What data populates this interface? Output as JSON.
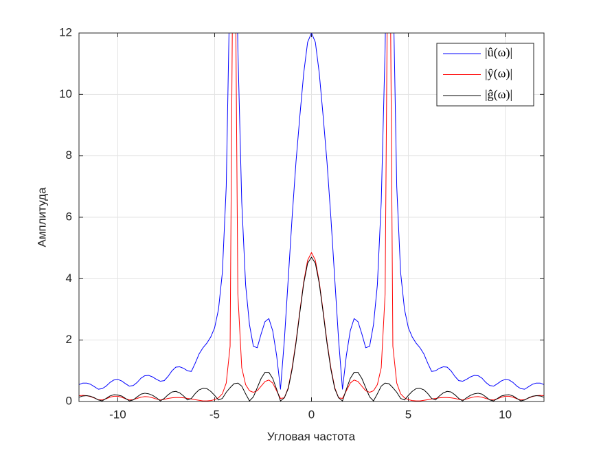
{
  "chart_data": {
    "type": "line",
    "xlabel": "Угловая частота",
    "ylabel": "Амплитуда",
    "xlim": [
      -12,
      12
    ],
    "ylim": [
      0,
      12
    ],
    "xticks": [
      -10,
      -5,
      0,
      5,
      10
    ],
    "yticks": [
      0,
      2,
      4,
      6,
      8,
      10,
      12
    ],
    "grid": true,
    "legend_position": "northeast",
    "x": [
      -12,
      -11.8,
      -11.6,
      -11.4,
      -11.2,
      -11,
      -10.8,
      -10.6,
      -10.4,
      -10.2,
      -10,
      -9.8,
      -9.6,
      -9.4,
      -9.2,
      -9,
      -8.8,
      -8.6,
      -8.4,
      -8.2,
      -8,
      -7.8,
      -7.6,
      -7.4,
      -7.2,
      -7,
      -6.8,
      -6.6,
      -6.4,
      -6.2,
      -6,
      -5.8,
      -5.6,
      -5.4,
      -5.2,
      -5,
      -4.8,
      -4.6,
      -4.4,
      -4.2,
      -4,
      -3.8,
      -3.6,
      -3.4,
      -3.2,
      -3,
      -2.8,
      -2.6,
      -2.4,
      -2.2,
      -2,
      -1.8,
      -1.6,
      -1.4,
      -1.2,
      -1,
      -0.8,
      -0.6,
      -0.4,
      -0.2,
      0,
      0.2,
      0.4,
      0.6,
      0.8,
      1,
      1.2,
      1.4,
      1.6,
      1.8,
      2,
      2.2,
      2.4,
      2.6,
      2.8,
      3,
      3.2,
      3.4,
      3.6,
      3.8,
      4,
      4.2,
      4.4,
      4.6,
      4.8,
      5,
      5.2,
      5.4,
      5.6,
      5.8,
      6,
      6.2,
      6.4,
      6.6,
      6.8,
      7,
      7.2,
      7.4,
      7.6,
      7.8,
      8,
      8.2,
      8.4,
      8.6,
      8.8,
      9,
      9.2,
      9.4,
      9.6,
      9.8,
      10,
      10.2,
      10.4,
      10.6,
      10.8,
      11,
      11.2,
      11.4,
      11.6,
      11.8,
      12
    ],
    "series": [
      {
        "name": "|û(ω)|",
        "color": "#0000ff",
        "values": [
          0.55,
          0.6,
          0.6,
          0.56,
          0.48,
          0.4,
          0.42,
          0.5,
          0.62,
          0.7,
          0.72,
          0.67,
          0.58,
          0.5,
          0.52,
          0.62,
          0.76,
          0.84,
          0.85,
          0.8,
          0.72,
          0.66,
          0.68,
          0.82,
          1.0,
          1.12,
          1.13,
          1.08,
          1.0,
          0.98,
          1.25,
          1.55,
          1.75,
          1.9,
          2.1,
          2.4,
          3.0,
          4.2,
          7.0,
          14,
          20,
          11.5,
          6.5,
          3.8,
          2.5,
          1.8,
          1.75,
          2.2,
          2.6,
          2.7,
          2.3,
          1.5,
          0.4,
          2.0,
          4.0,
          6.0,
          7.8,
          9.3,
          10.7,
          11.7,
          12,
          11.7,
          10.7,
          9.3,
          7.8,
          6.0,
          4.0,
          2.0,
          0.4,
          1.5,
          2.3,
          2.7,
          2.6,
          2.2,
          1.75,
          1.8,
          2.5,
          3.8,
          6.5,
          11.5,
          20,
          14,
          7.0,
          4.2,
          3.0,
          2.4,
          2.1,
          1.9,
          1.75,
          1.55,
          1.25,
          0.98,
          1.0,
          1.08,
          1.13,
          1.12,
          1.0,
          0.82,
          0.68,
          0.66,
          0.72,
          0.8,
          0.85,
          0.84,
          0.76,
          0.62,
          0.52,
          0.5,
          0.58,
          0.67,
          0.72,
          0.7,
          0.62,
          0.5,
          0.42,
          0.4,
          0.48,
          0.56,
          0.6,
          0.6,
          0.55
        ]
      },
      {
        "name": "|ŷ(ω)|",
        "color": "#ff0000",
        "values": [
          0.19,
          0.2,
          0.19,
          0.16,
          0.11,
          0.06,
          0.05,
          0.09,
          0.14,
          0.17,
          0.17,
          0.14,
          0.09,
          0.05,
          0.06,
          0.1,
          0.14,
          0.16,
          0.15,
          0.12,
          0.08,
          0.05,
          0.07,
          0.1,
          0.12,
          0.13,
          0.13,
          0.12,
          0.1,
          0.08,
          0.06,
          0.04,
          0.02,
          0.02,
          0.03,
          0.06,
          0.12,
          0.25,
          0.6,
          1.8,
          20,
          3.5,
          1.1,
          0.55,
          0.35,
          0.3,
          0.35,
          0.5,
          0.65,
          0.7,
          0.6,
          0.35,
          0.1,
          0.12,
          0.45,
          1.1,
          1.95,
          2.95,
          3.9,
          4.6,
          4.85,
          4.6,
          3.9,
          2.95,
          1.95,
          1.1,
          0.45,
          0.12,
          0.1,
          0.35,
          0.6,
          0.7,
          0.65,
          0.5,
          0.35,
          0.3,
          0.35,
          0.55,
          1.1,
          3.5,
          20,
          1.8,
          0.6,
          0.25,
          0.12,
          0.06,
          0.03,
          0.02,
          0.02,
          0.04,
          0.06,
          0.08,
          0.1,
          0.12,
          0.13,
          0.13,
          0.12,
          0.1,
          0.07,
          0.05,
          0.08,
          0.12,
          0.15,
          0.16,
          0.14,
          0.1,
          0.06,
          0.05,
          0.09,
          0.14,
          0.17,
          0.17,
          0.14,
          0.09,
          0.05,
          0.06,
          0.11,
          0.16,
          0.19,
          0.2,
          0.19
        ]
      },
      {
        "name": "|ĝ(ω)|",
        "color": "#000000",
        "values": [
          0.14,
          0.18,
          0.19,
          0.17,
          0.12,
          0.05,
          0.02,
          0.1,
          0.18,
          0.22,
          0.21,
          0.18,
          0.1,
          0.02,
          0.05,
          0.15,
          0.24,
          0.27,
          0.25,
          0.2,
          0.12,
          0.02,
          0.1,
          0.22,
          0.31,
          0.33,
          0.28,
          0.18,
          0.05,
          0.1,
          0.26,
          0.38,
          0.43,
          0.42,
          0.33,
          0.2,
          0.05,
          0.1,
          0.3,
          0.45,
          0.58,
          0.6,
          0.5,
          0.25,
          0.02,
          0.15,
          0.45,
          0.75,
          0.95,
          0.95,
          0.75,
          0.4,
          0.02,
          0.12,
          0.42,
          1.05,
          1.9,
          2.9,
          3.85,
          4.5,
          4.7,
          4.5,
          3.85,
          2.9,
          1.9,
          1.05,
          0.42,
          0.12,
          0.02,
          0.4,
          0.75,
          0.95,
          0.95,
          0.75,
          0.45,
          0.15,
          0.02,
          0.25,
          0.5,
          0.6,
          0.58,
          0.45,
          0.3,
          0.1,
          0.05,
          0.2,
          0.33,
          0.42,
          0.43,
          0.38,
          0.26,
          0.1,
          0.05,
          0.18,
          0.28,
          0.33,
          0.31,
          0.22,
          0.1,
          0.02,
          0.12,
          0.2,
          0.25,
          0.27,
          0.24,
          0.15,
          0.05,
          0.02,
          0.1,
          0.18,
          0.21,
          0.22,
          0.18,
          0.1,
          0.02,
          0.05,
          0.12,
          0.17,
          0.19,
          0.18,
          0.14
        ]
      }
    ]
  }
}
